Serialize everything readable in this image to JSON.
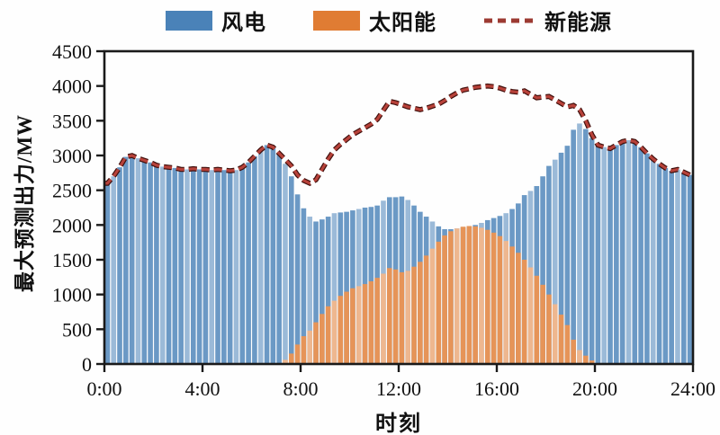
{
  "chart_data": {
    "type": "bar",
    "subtype": "overlapping-bars-with-dashed-line",
    "title": "",
    "xlabel": "时刻",
    "ylabel": "最大预测出力/MW",
    "x_range_hours": [
      0,
      24
    ],
    "x_step_hours": 0.25,
    "ylim": [
      0,
      4500
    ],
    "grid": false,
    "legend_position": "top",
    "x_tick_hours": [
      0,
      4,
      8,
      12,
      16,
      20,
      24
    ],
    "x_tick_labels": [
      "0:00",
      "4:00",
      "8:00",
      "12:00",
      "16:00",
      "20:00",
      "24:00"
    ],
    "y_ticks": [
      0,
      500,
      1000,
      1500,
      2000,
      2500,
      3000,
      3500,
      4000,
      4500
    ],
    "series": [
      {
        "name": "风电",
        "type": "bar",
        "color": "#4a82b8",
        "values": [
          2600,
          2700,
          2830,
          2980,
          3000,
          2960,
          2930,
          2900,
          2860,
          2840,
          2830,
          2820,
          2800,
          2800,
          2810,
          2800,
          2800,
          2790,
          2800,
          2790,
          2780,
          2790,
          2830,
          2900,
          2990,
          3080,
          3150,
          3120,
          3030,
          2880,
          2700,
          2440,
          2240,
          2120,
          2050,
          2080,
          2120,
          2170,
          2180,
          2190,
          2210,
          2230,
          2250,
          2260,
          2280,
          2350,
          2400,
          2400,
          2410,
          2360,
          2280,
          2190,
          2120,
          2050,
          1980,
          1940,
          1940,
          1950,
          1965,
          1975,
          2000,
          2030,
          2070,
          2100,
          2130,
          2170,
          2230,
          2310,
          2430,
          2490,
          2560,
          2700,
          2850,
          2940,
          3040,
          3140,
          3370,
          3460,
          3380,
          3250,
          3140,
          3120,
          3100,
          3150,
          3200,
          3220,
          3200,
          3120,
          3030,
          2950,
          2880,
          2820,
          2780,
          2800,
          2760,
          2720
        ]
      },
      {
        "name": "太阳能",
        "type": "bar",
        "color": "#e07c33",
        "values": [
          0,
          0,
          0,
          0,
          0,
          0,
          0,
          0,
          0,
          0,
          0,
          0,
          0,
          0,
          0,
          0,
          0,
          0,
          0,
          0,
          0,
          0,
          0,
          0,
          0,
          0,
          0,
          0,
          0,
          60,
          150,
          280,
          400,
          480,
          600,
          720,
          830,
          910,
          980,
          1040,
          1090,
          1120,
          1150,
          1190,
          1240,
          1300,
          1380,
          1360,
          1320,
          1340,
          1400,
          1470,
          1560,
          1660,
          1760,
          1850,
          1910,
          1950,
          1975,
          1985,
          1980,
          1960,
          1930,
          1890,
          1840,
          1770,
          1690,
          1600,
          1500,
          1390,
          1270,
          1140,
          1000,
          860,
          710,
          560,
          350,
          200,
          120,
          50,
          10,
          0,
          0,
          0,
          0,
          0,
          0,
          0,
          0,
          0,
          0,
          0,
          0,
          0,
          0,
          0
        ]
      },
      {
        "name": "新能源",
        "type": "line",
        "style": "dashed",
        "color": "#9c3a32",
        "derivation": "sum of 风电 and 太阳能 bar values at each time step"
      }
    ]
  }
}
